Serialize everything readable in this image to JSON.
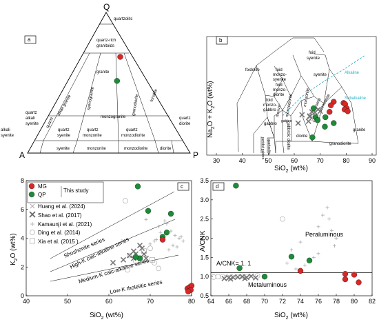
{
  "chart_data": [
    {
      "type": "ternary-diagram",
      "panel": "a",
      "vertices": {
        "top": "Q",
        "left": "A",
        "right": "P"
      },
      "fields": [
        "quartzolitc",
        "quartz-rich granitoids",
        "granite",
        "alkali granite",
        "syenogranite",
        "monzogranite",
        "granodiorite",
        "tonalite",
        "quartz alkali syenite",
        "quartz syenite",
        "quartz monzonite",
        "quartz monzodiorite",
        "quartz diorite",
        "alkali syenite",
        "syenite",
        "monzonite",
        "monzodiorite",
        "diorite"
      ],
      "points": [
        {
          "series": "MG",
          "color": "#d62828",
          "x": 0.57,
          "y": 0.36
        },
        {
          "series": "QP",
          "color": "#1f8a3a",
          "x": 0.55,
          "y": 0.27
        }
      ]
    },
    {
      "type": "scatter",
      "panel": "b",
      "xlabel": "SiO2 (wt%)",
      "ylabel": "Na2O + K2O (wt%)",
      "xlim": [
        30,
        90
      ],
      "ylim": [
        0,
        20
      ],
      "xticks": [
        "30",
        "40",
        "50",
        "60",
        "70",
        "80",
        "90"
      ],
      "fields": [
        "foidolite",
        "foid syenite",
        "foid monzo-syenite",
        "foid monzo-diorite",
        "foid monzo-gabbro",
        "syenite",
        "monzonite",
        "monzo-diorite",
        "monzo-gabbro",
        "quartz monzonite",
        "gabbro",
        "gabbroic diorite",
        "diorite",
        "granodiorite",
        "granite",
        "quartzolite",
        "peridot gabbro"
      ],
      "annotations": [
        "Alkaline",
        "Subalkaline"
      ],
      "series": [
        {
          "name": "MG",
          "color": "#d62828",
          "x": [
            75.2,
            79.0,
            79.6,
            80.2,
            79.4,
            80.6,
            74.1,
            73.6
          ],
          "y": [
            9.0,
            8.8,
            8.6,
            7.9,
            7.7,
            7.4,
            8.4,
            7.3
          ]
        },
        {
          "name": "QP",
          "color": "#1f8a3a",
          "x": [
            67.5,
            68.2,
            72.0,
            75.2,
            71.8,
            69.0,
            67.0
          ],
          "y": [
            7.9,
            6.4,
            6.4,
            5.4,
            4.8,
            5.9,
            3.0
          ]
        },
        {
          "name": "Shao",
          "marker": "x",
          "color": "#777777",
          "x": [
            63.0,
            66.0,
            66.8,
            67.3,
            68.0,
            69.2,
            70.0,
            65.5,
            61.5,
            66.0,
            68.4
          ],
          "y": [
            6.8,
            6.5,
            7.3,
            7.6,
            7.2,
            7.7,
            7.4,
            5.7,
            5.4,
            6.6,
            6.0
          ]
        },
        {
          "name": "Ding",
          "marker": "circle-open",
          "color": "#999999",
          "x": [
            67.0,
            68.0,
            69.0
          ],
          "y": [
            6.2,
            6.0,
            6.4
          ]
        }
      ]
    },
    {
      "type": "scatter",
      "panel": "c",
      "xlabel": "SiO2 (wt%)",
      "ylabel": "K2O (wt%)",
      "xlim": [
        40,
        80
      ],
      "ylim": [
        0,
        8
      ],
      "xticks": [
        "40",
        "50",
        "60",
        "70",
        "80"
      ],
      "yticks": [
        "0",
        "2",
        "4",
        "6",
        "8"
      ],
      "series_labels": [
        "Shoshonite series",
        "High-K calc-alkaline series",
        "Medium-K calc-alkaline series",
        "Low-K tholeiitic series"
      ],
      "legend": [
        "MG",
        "QP",
        "This study",
        "Huang et al. (2024)",
        "Shao et al. (2017)",
        "Kamaunji et al. (2021)",
        "Ding et al. (2014)",
        "Xia et al. (2015)"
      ],
      "series": [
        {
          "name": "MG",
          "color": "#d62828",
          "x": [
            73.0,
            79.0,
            79.5,
            80.0,
            79.8,
            79.2
          ],
          "y": [
            3.9,
            0.5,
            0.6,
            0.7,
            0.4,
            0.3
          ]
        },
        {
          "name": "QP",
          "color": "#1f8a3a",
          "x": [
            67.0,
            69.5,
            73.0,
            74.0,
            75.0,
            67.5,
            66.5
          ],
          "y": [
            7.6,
            5.9,
            4.1,
            4.4,
            5.7,
            2.6,
            2.7
          ]
        },
        {
          "name": "Shao et al. (2017)",
          "marker": "x",
          "color": "#777777",
          "x": [
            61.0,
            63.5,
            65.0,
            66.0,
            66.5,
            67.5,
            68.0,
            69.0,
            66.0,
            68.5
          ],
          "y": [
            2.3,
            2.5,
            2.8,
            3.1,
            2.9,
            3.5,
            3.3,
            2.6,
            2.6,
            2.9
          ]
        },
        {
          "name": "Kamaunji et al. (2021)",
          "marker": "plus",
          "color": "#999999",
          "x": [
            70.0,
            71.0,
            72.0,
            73.5,
            74.0,
            75.0,
            76.0,
            77.0,
            78.0,
            76.5,
            77.5,
            72.5,
            71.5,
            75.5,
            74.5,
            69.0
          ],
          "y": [
            3.6,
            3.8,
            4.8,
            5.2,
            5.0,
            4.5,
            4.2,
            4.0,
            3.8,
            3.4,
            4.1,
            4.4,
            3.9,
            3.5,
            3.2,
            5.3
          ]
        },
        {
          "name": "Ding et al. (2014)",
          "marker": "circle-open",
          "color": "#999999",
          "x": [
            64.0,
            65.0,
            66.5,
            70.0,
            71.0,
            72.0,
            64.5
          ],
          "y": [
            6.6,
            2.8,
            2.4,
            3.3,
            2.3,
            1.9,
            1.8
          ]
        },
        {
          "name": "Xia et al. (2015)",
          "marker": "square-open",
          "color": "#999999",
          "x": [
            68.5,
            70.5
          ],
          "y": [
            3.1,
            2.5
          ]
        }
      ]
    },
    {
      "type": "scatter",
      "panel": "d",
      "xlabel": "SiO2 (wt%)",
      "ylabel": "A/CNK",
      "xlim": [
        64,
        82
      ],
      "ylim": [
        0.5,
        3.5
      ],
      "xticks": [
        "64",
        "66",
        "68",
        "70",
        "72",
        "74",
        "76",
        "78",
        "80",
        "82"
      ],
      "yticks": [
        "0.5",
        "1.0",
        "1.5",
        "2.0",
        "2.5",
        "3.0",
        "3.5"
      ],
      "reference_line": 1.1,
      "annotations": [
        "Peraluminous",
        "A/CNK= 1. 1",
        "Metaluminous"
      ],
      "series": [
        {
          "name": "MG",
          "color": "#d62828",
          "x": [
            74.0,
            79.0,
            79.0,
            80.0,
            80.5
          ],
          "y": [
            1.15,
            1.07,
            0.93,
            1.05,
            0.85
          ]
        },
        {
          "name": "QP",
          "color": "#1f8a3a",
          "x": [
            66.8,
            67.2,
            70.0,
            73.0,
            75.0
          ],
          "y": [
            3.37,
            1.22,
            1.0,
            1.52,
            1.42
          ]
        },
        {
          "name": "Shao",
          "marker": "x",
          "color": "#777777",
          "x": [
            65.5,
            66.0,
            66.5,
            67.0,
            67.5,
            68.0,
            68.5,
            69.0,
            66.2,
            67.8
          ],
          "y": [
            0.95,
            0.97,
            0.98,
            0.99,
            1.0,
            0.98,
            1.01,
            0.97,
            0.94,
            0.95
          ]
        },
        {
          "name": "Kamaunji",
          "marker": "plus",
          "color": "#999999",
          "x": [
            73.0,
            74.0,
            75.0,
            76.0,
            76.5,
            77.0,
            77.2,
            77.5,
            78.0,
            76.0,
            75.5,
            74.5,
            73.5,
            72.5,
            77.8
          ],
          "y": [
            1.7,
            1.9,
            2.1,
            2.3,
            2.6,
            2.8,
            2.5,
            2.2,
            2.0,
            1.6,
            1.5,
            1.3,
            1.2,
            1.35,
            1.8
          ]
        },
        {
          "name": "Ding",
          "marker": "circle-open",
          "color": "#999999",
          "x": [
            64.3,
            64.8,
            65.3,
            65.8,
            66.3,
            67.0,
            67.5,
            68.0,
            72.0,
            69.2
          ],
          "y": [
            0.99,
            1.0,
            1.0,
            0.98,
            0.99,
            1.0,
            1.01,
            1.0,
            2.5,
            1.02
          ]
        }
      ]
    }
  ],
  "labels": {
    "a": "a",
    "b": "b",
    "c": "c",
    "d": "d",
    "Q": "Q",
    "A": "A",
    "P": "P",
    "quartzolitc": "quartzolitc",
    "quartz_rich": "quartz-rich",
    "granitoids": "granitoids",
    "granite": "granite",
    "alkali_granite": "alkali granite",
    "syenogranite": "syenogranite",
    "monzogranite": "monzogranite",
    "granodiorite": "granodiorite",
    "tonalite": "tonalite",
    "quartz": "quartz",
    "alkali": "alkali",
    "syenite": "syenite",
    "monzonite": "monzonite",
    "monzodiorite": "monzodiorite",
    "diorite": "diorite",
    "foidolite": "foidolite",
    "foid": "foid",
    "monzo_dash": "monzo-",
    "gabbro": "gabbro",
    "gabbroic_diorite": "gabbroic diorite",
    "quartzolite": "quartzolite",
    "peridot_gabbro": "peridot gabbro",
    "alkaline": "Alkaline",
    "subalkaline": "Subalkaline",
    "mg": "MG",
    "qp": "QP",
    "this_study": "This study",
    "huang": "Huang et al. (2024)",
    "shao": "Shao et al. (2017)",
    "kamaunji": "Kamaunji et al. (2021)",
    "ding": "Ding  et al. (2014)",
    "xia": "Xia et al. (2015 )",
    "shoshonite": "Shoshonite  series",
    "highk": "High-K calc-alkaline series",
    "mediumk": "Medium-K calc-alkaline series",
    "lowk": "Low-K tholeiitic series",
    "peraluminous": "Peraluminous",
    "acnk": "A/CNK= 1. 1",
    "metaluminous": "Metaluminous",
    "ylabel_b1": "Na",
    "ylabel_b2": "2",
    "ylabel_b3": "O + K",
    "ylabel_b4": "2",
    "ylabel_b5": "O (wt%)",
    "ylabel_c1": "K",
    "ylabel_c2": "2",
    "ylabel_c3": "O (wt%)",
    "ylabel_d": "A/CNK",
    "xlabel_1": "SiO",
    "xlabel_2": "2",
    "xlabel_3": " (wt%)"
  }
}
